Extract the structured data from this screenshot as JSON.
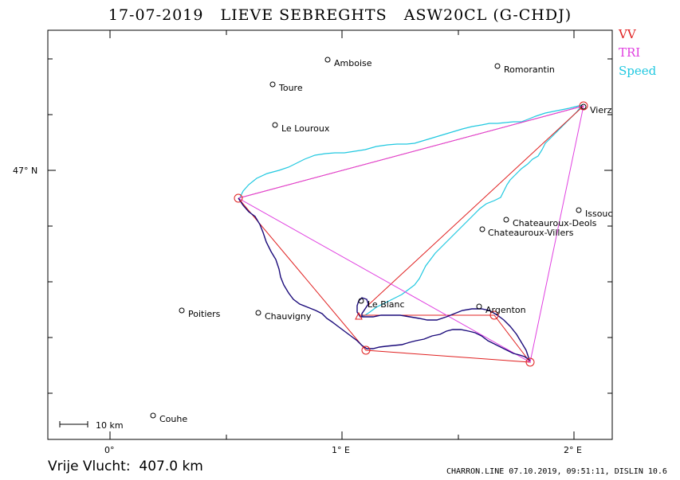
{
  "title": "17-07-2019   LIEVE SEBREGHTS   ASW20CL (G-CHDJ)",
  "legend": [
    {
      "label": "VV",
      "color": "#e02020"
    },
    {
      "label": "TRI",
      "color": "#e040e0"
    },
    {
      "label": "Speed",
      "color": "#20c8e0"
    }
  ],
  "axis": {
    "lon_ticks": [
      "0°",
      "1° E",
      "2° E"
    ],
    "lat_ticks": [
      "47° N"
    ]
  },
  "scale_bar": "10 km",
  "footer": {
    "distance": "Vrije Vlucht:  407.0 km",
    "software": "CHARRON.LINE 07.10.2019, 09:51:11, DISLIN 10.6"
  },
  "towns": [
    {
      "name": "Amboise"
    },
    {
      "name": "Romorantin"
    },
    {
      "name": "Toure"
    },
    {
      "name": "Le Louroux"
    },
    {
      "name": "Vierz"
    },
    {
      "name": "Issouc"
    },
    {
      "name": "Chateauroux-Deols"
    },
    {
      "name": "Chateauroux-Villers"
    },
    {
      "name": "Le Blanc"
    },
    {
      "name": "Argenton"
    },
    {
      "name": "Poitiers"
    },
    {
      "name": "Chauvigny"
    },
    {
      "name": "Couhe"
    }
  ],
  "colors": {
    "track": "#1a0a7a",
    "vv": "#e02020",
    "tri": "#e040e0",
    "speed": "#20c8e0"
  }
}
